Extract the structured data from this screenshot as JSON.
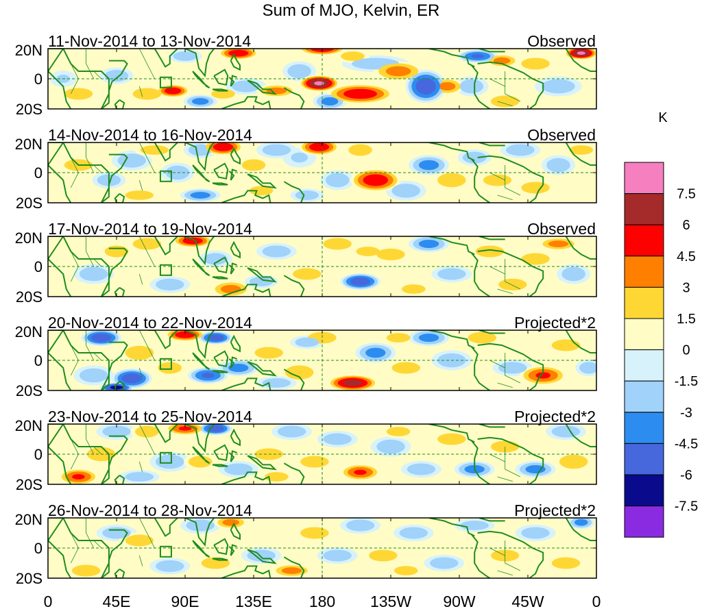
{
  "title": "Sum of MJO, Kelvin, ER",
  "chart_data": {
    "type": "heatmap",
    "title": "Sum of MJO, Kelvin, ER",
    "xlabel": "",
    "ylabel": "",
    "xlim": [
      0,
      360
    ],
    "ylim": [
      -20,
      20
    ],
    "x_ticks": [
      "0",
      "45E",
      "90E",
      "135E",
      "180",
      "135W",
      "90W",
      "45W",
      "0"
    ],
    "y_ticks": [
      "20N",
      "0",
      "20S"
    ],
    "units": "K",
    "colorbar": {
      "label": "K",
      "levels": [
        "7.5",
        "6",
        "4.5",
        "3",
        "1.5",
        "0",
        "-1.5",
        "-3",
        "-4.5",
        "-6",
        "-7.5"
      ],
      "colors": [
        "#f57fbf",
        "#a52a2a",
        "#ff0000",
        "#ff7f00",
        "#ffd735",
        "#fffcc5",
        "#d7f2fa",
        "#a0d2fa",
        "#2d8cf0",
        "#4668dc",
        "#0a0a8c",
        "#8a2be2"
      ]
    },
    "panels": [
      {
        "date_range": "11-Nov-2014 to 13-Nov-2014",
        "label": "Observed",
        "blobs": [
          [
            125,
            17,
            12,
            4,
            6
          ],
          [
            180,
            20,
            14,
            4,
            6
          ],
          [
            45,
            2,
            10,
            5,
            -3
          ],
          [
            65,
            -10,
            12,
            5,
            3
          ],
          [
            82,
            -8,
            10,
            4,
            6
          ],
          [
            100,
            -15,
            10,
            4,
            -4
          ],
          [
            115,
            -10,
            10,
            4,
            3
          ],
          [
            130,
            -5,
            12,
            5,
            -3
          ],
          [
            150,
            -8,
            12,
            4,
            4
          ],
          [
            165,
            5,
            10,
            6,
            -3
          ],
          [
            178,
            -3,
            12,
            5,
            8
          ],
          [
            185,
            -15,
            10,
            5,
            -4
          ],
          [
            205,
            -10,
            20,
            6,
            6
          ],
          [
            215,
            10,
            20,
            5,
            -3
          ],
          [
            230,
            5,
            15,
            6,
            4
          ],
          [
            248,
            -5,
            12,
            10,
            -6
          ],
          [
            262,
            -5,
            10,
            5,
            4
          ],
          [
            278,
            -5,
            10,
            6,
            -3
          ],
          [
            282,
            15,
            12,
            4,
            -5
          ],
          [
            300,
            -15,
            12,
            5,
            3
          ],
          [
            320,
            10,
            12,
            5,
            3
          ],
          [
            335,
            -5,
            14,
            6,
            -3
          ],
          [
            350,
            17,
            10,
            4,
            8
          ],
          [
            20,
            -10,
            12,
            5,
            3
          ],
          [
            10,
            0,
            8,
            5,
            -2
          ],
          [
            90,
            15,
            10,
            4,
            -3
          ],
          [
            200,
            15,
            10,
            4,
            3
          ],
          [
            298,
            12,
            10,
            4,
            4
          ]
        ]
      },
      {
        "date_range": "14-Nov-2014 to 16-Nov-2014",
        "label": "Observed",
        "blobs": [
          [
            20,
            5,
            12,
            5,
            3
          ],
          [
            40,
            -5,
            10,
            5,
            -3
          ],
          [
            55,
            8,
            12,
            6,
            -3
          ],
          [
            70,
            15,
            12,
            4,
            3
          ],
          [
            85,
            0,
            10,
            6,
            -3
          ],
          [
            100,
            15,
            10,
            5,
            -3
          ],
          [
            115,
            17,
            12,
            5,
            6
          ],
          [
            135,
            5,
            10,
            5,
            3
          ],
          [
            150,
            15,
            12,
            5,
            -3
          ],
          [
            165,
            10,
            10,
            6,
            -2
          ],
          [
            178,
            17,
            12,
            5,
            6
          ],
          [
            190,
            -5,
            10,
            6,
            -3
          ],
          [
            205,
            15,
            10,
            5,
            3
          ],
          [
            215,
            -5,
            15,
            7,
            6
          ],
          [
            235,
            -12,
            12,
            6,
            -3
          ],
          [
            250,
            5,
            12,
            6,
            -4
          ],
          [
            265,
            -5,
            12,
            6,
            3
          ],
          [
            280,
            10,
            10,
            5,
            -3
          ],
          [
            295,
            -5,
            12,
            5,
            3
          ],
          [
            310,
            15,
            12,
            5,
            -3
          ],
          [
            320,
            -10,
            12,
            5,
            3
          ],
          [
            335,
            5,
            10,
            6,
            -3
          ],
          [
            350,
            15,
            10,
            4,
            3
          ],
          [
            100,
            -15,
            12,
            4,
            -4
          ],
          [
            60,
            -15,
            12,
            4,
            3
          ],
          [
            140,
            -12,
            10,
            4,
            3
          ],
          [
            170,
            -15,
            10,
            4,
            -3
          ]
        ]
      },
      {
        "date_range": "17-Nov-2014 to 19-Nov-2014",
        "label": "Observed",
        "blobs": [
          [
            95,
            17,
            12,
            4,
            6
          ],
          [
            65,
            15,
            12,
            5,
            3
          ],
          [
            110,
            5,
            10,
            5,
            -3
          ],
          [
            150,
            10,
            12,
            5,
            -3
          ],
          [
            170,
            -5,
            12,
            5,
            3
          ],
          [
            190,
            15,
            12,
            5,
            3
          ],
          [
            205,
            -10,
            12,
            5,
            -6
          ],
          [
            225,
            8,
            12,
            5,
            3
          ],
          [
            250,
            15,
            12,
            5,
            -4
          ],
          [
            265,
            -5,
            12,
            5,
            -3
          ],
          [
            290,
            10,
            12,
            5,
            3
          ],
          [
            305,
            -12,
            12,
            5,
            3
          ],
          [
            320,
            5,
            12,
            5,
            3
          ],
          [
            335,
            15,
            12,
            4,
            4
          ],
          [
            345,
            -5,
            10,
            6,
            -3
          ],
          [
            30,
            -5,
            12,
            6,
            -3
          ],
          [
            45,
            10,
            10,
            5,
            3
          ],
          [
            80,
            -12,
            12,
            5,
            -3
          ],
          [
            120,
            -15,
            12,
            5,
            4
          ],
          [
            140,
            -10,
            10,
            4,
            -3
          ],
          [
            240,
            -15,
            10,
            4,
            3
          ],
          [
            210,
            10,
            10,
            4,
            3
          ]
        ]
      },
      {
        "date_range": "20-Nov-2014 to 22-Nov-2014",
        "label": "Projected*2",
        "blobs": [
          [
            35,
            15,
            12,
            5,
            -6
          ],
          [
            90,
            17,
            12,
            4,
            6
          ],
          [
            110,
            15,
            10,
            4,
            -6
          ],
          [
            60,
            5,
            12,
            6,
            3
          ],
          [
            30,
            -10,
            12,
            6,
            -3
          ],
          [
            55,
            -12,
            12,
            6,
            -6
          ],
          [
            80,
            -5,
            10,
            5,
            3
          ],
          [
            105,
            -10,
            12,
            5,
            -5
          ],
          [
            125,
            -5,
            12,
            5,
            -4
          ],
          [
            145,
            5,
            12,
            5,
            3
          ],
          [
            165,
            -8,
            12,
            6,
            3
          ],
          [
            180,
            15,
            12,
            5,
            3
          ],
          [
            200,
            -15,
            15,
            5,
            7
          ],
          [
            215,
            5,
            12,
            6,
            -4
          ],
          [
            235,
            -5,
            12,
            5,
            3
          ],
          [
            250,
            15,
            12,
            5,
            -4
          ],
          [
            265,
            0,
            12,
            6,
            -3
          ],
          [
            285,
            15,
            12,
            5,
            3
          ],
          [
            305,
            -5,
            12,
            5,
            -3
          ],
          [
            325,
            -10,
            14,
            6,
            5
          ],
          [
            340,
            10,
            12,
            5,
            3
          ],
          [
            355,
            -5,
            8,
            5,
            -3
          ],
          [
            150,
            -15,
            12,
            4,
            -3
          ],
          [
            170,
            12,
            10,
            4,
            -3
          ],
          [
            230,
            15,
            10,
            4,
            3
          ],
          [
            45,
            -18,
            10,
            3,
            -7
          ]
        ]
      },
      {
        "date_range": "23-Nov-2014 to 25-Nov-2014",
        "label": "Projected*2",
        "blobs": [
          [
            20,
            -15,
            12,
            5,
            5
          ],
          [
            45,
            15,
            12,
            5,
            -3
          ],
          [
            65,
            15,
            10,
            5,
            3
          ],
          [
            90,
            17,
            12,
            4,
            5
          ],
          [
            110,
            17,
            10,
            4,
            -6
          ],
          [
            80,
            -5,
            12,
            6,
            -3
          ],
          [
            100,
            -5,
            10,
            5,
            3
          ],
          [
            125,
            -10,
            12,
            5,
            -3
          ],
          [
            145,
            0,
            12,
            5,
            3
          ],
          [
            160,
            15,
            12,
            5,
            -3
          ],
          [
            175,
            -5,
            12,
            5,
            3
          ],
          [
            190,
            10,
            12,
            5,
            -3
          ],
          [
            205,
            -12,
            12,
            5,
            5
          ],
          [
            225,
            5,
            12,
            6,
            -3
          ],
          [
            245,
            -10,
            12,
            5,
            -3
          ],
          [
            265,
            10,
            12,
            5,
            3
          ],
          [
            280,
            -10,
            12,
            5,
            -4
          ],
          [
            300,
            5,
            12,
            5,
            3
          ],
          [
            320,
            -10,
            12,
            5,
            -4
          ],
          [
            340,
            15,
            12,
            5,
            -3
          ],
          [
            345,
            -5,
            12,
            6,
            3
          ],
          [
            35,
            0,
            12,
            6,
            3
          ],
          [
            60,
            -15,
            12,
            4,
            -3
          ],
          [
            150,
            -15,
            10,
            4,
            3
          ],
          [
            230,
            15,
            10,
            4,
            3
          ]
        ]
      },
      {
        "date_range": "26-Nov-2014 to 28-Nov-2014",
        "label": "Projected*2",
        "blobs": [
          [
            25,
            -15,
            12,
            5,
            3
          ],
          [
            45,
            10,
            12,
            5,
            -3
          ],
          [
            80,
            -12,
            12,
            5,
            -3
          ],
          [
            100,
            15,
            12,
            5,
            -3
          ],
          [
            120,
            17,
            10,
            4,
            4
          ],
          [
            140,
            -5,
            12,
            5,
            -3
          ],
          [
            160,
            -15,
            12,
            4,
            4
          ],
          [
            175,
            10,
            12,
            5,
            3
          ],
          [
            190,
            -5,
            12,
            5,
            -3
          ],
          [
            205,
            15,
            12,
            5,
            -3
          ],
          [
            220,
            -5,
            12,
            5,
            3
          ],
          [
            240,
            10,
            12,
            5,
            -3
          ],
          [
            260,
            -10,
            12,
            5,
            -3
          ],
          [
            280,
            15,
            12,
            4,
            -3
          ],
          [
            300,
            -5,
            12,
            5,
            3
          ],
          [
            320,
            10,
            12,
            5,
            -3
          ],
          [
            340,
            -10,
            12,
            5,
            3
          ],
          [
            350,
            17,
            8,
            4,
            -4
          ],
          [
            60,
            5,
            12,
            5,
            3
          ],
          [
            110,
            -10,
            12,
            5,
            3
          ],
          [
            235,
            -15,
            10,
            4,
            3
          ]
        ]
      }
    ]
  }
}
